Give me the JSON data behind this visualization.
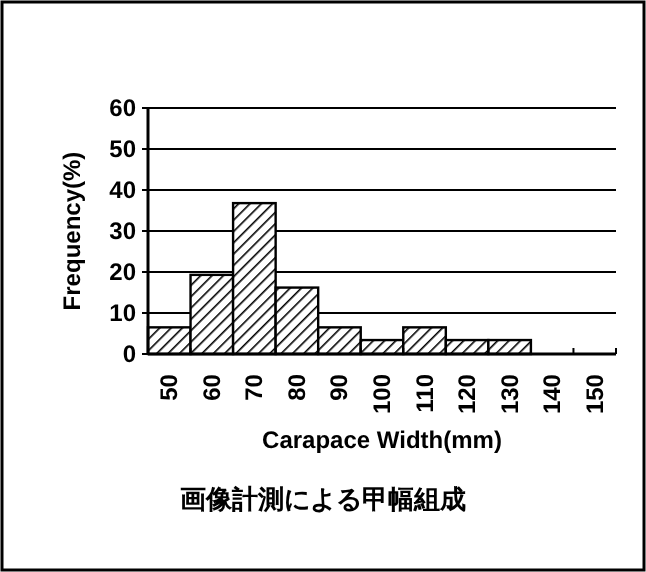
{
  "chart_data": {
    "type": "bar",
    "categories": [
      "50",
      "60",
      "70",
      "80",
      "90",
      "100",
      "110",
      "120",
      "130",
      "140",
      "150"
    ],
    "values": [
      6.5,
      19.3,
      36.8,
      16.2,
      6.5,
      3.4,
      6.5,
      3.4,
      3.4,
      0,
      0
    ],
    "color": "#000000",
    "xlabel": "Carapace  Width(mm)",
    "ylabel": "Frequency(%)",
    "ylim": [
      0,
      60
    ],
    "yticks": [
      0,
      10,
      20,
      30,
      40,
      50,
      60
    ],
    "grid": "y",
    "annotations": [
      "画像計測による甲幅組成"
    ]
  }
}
